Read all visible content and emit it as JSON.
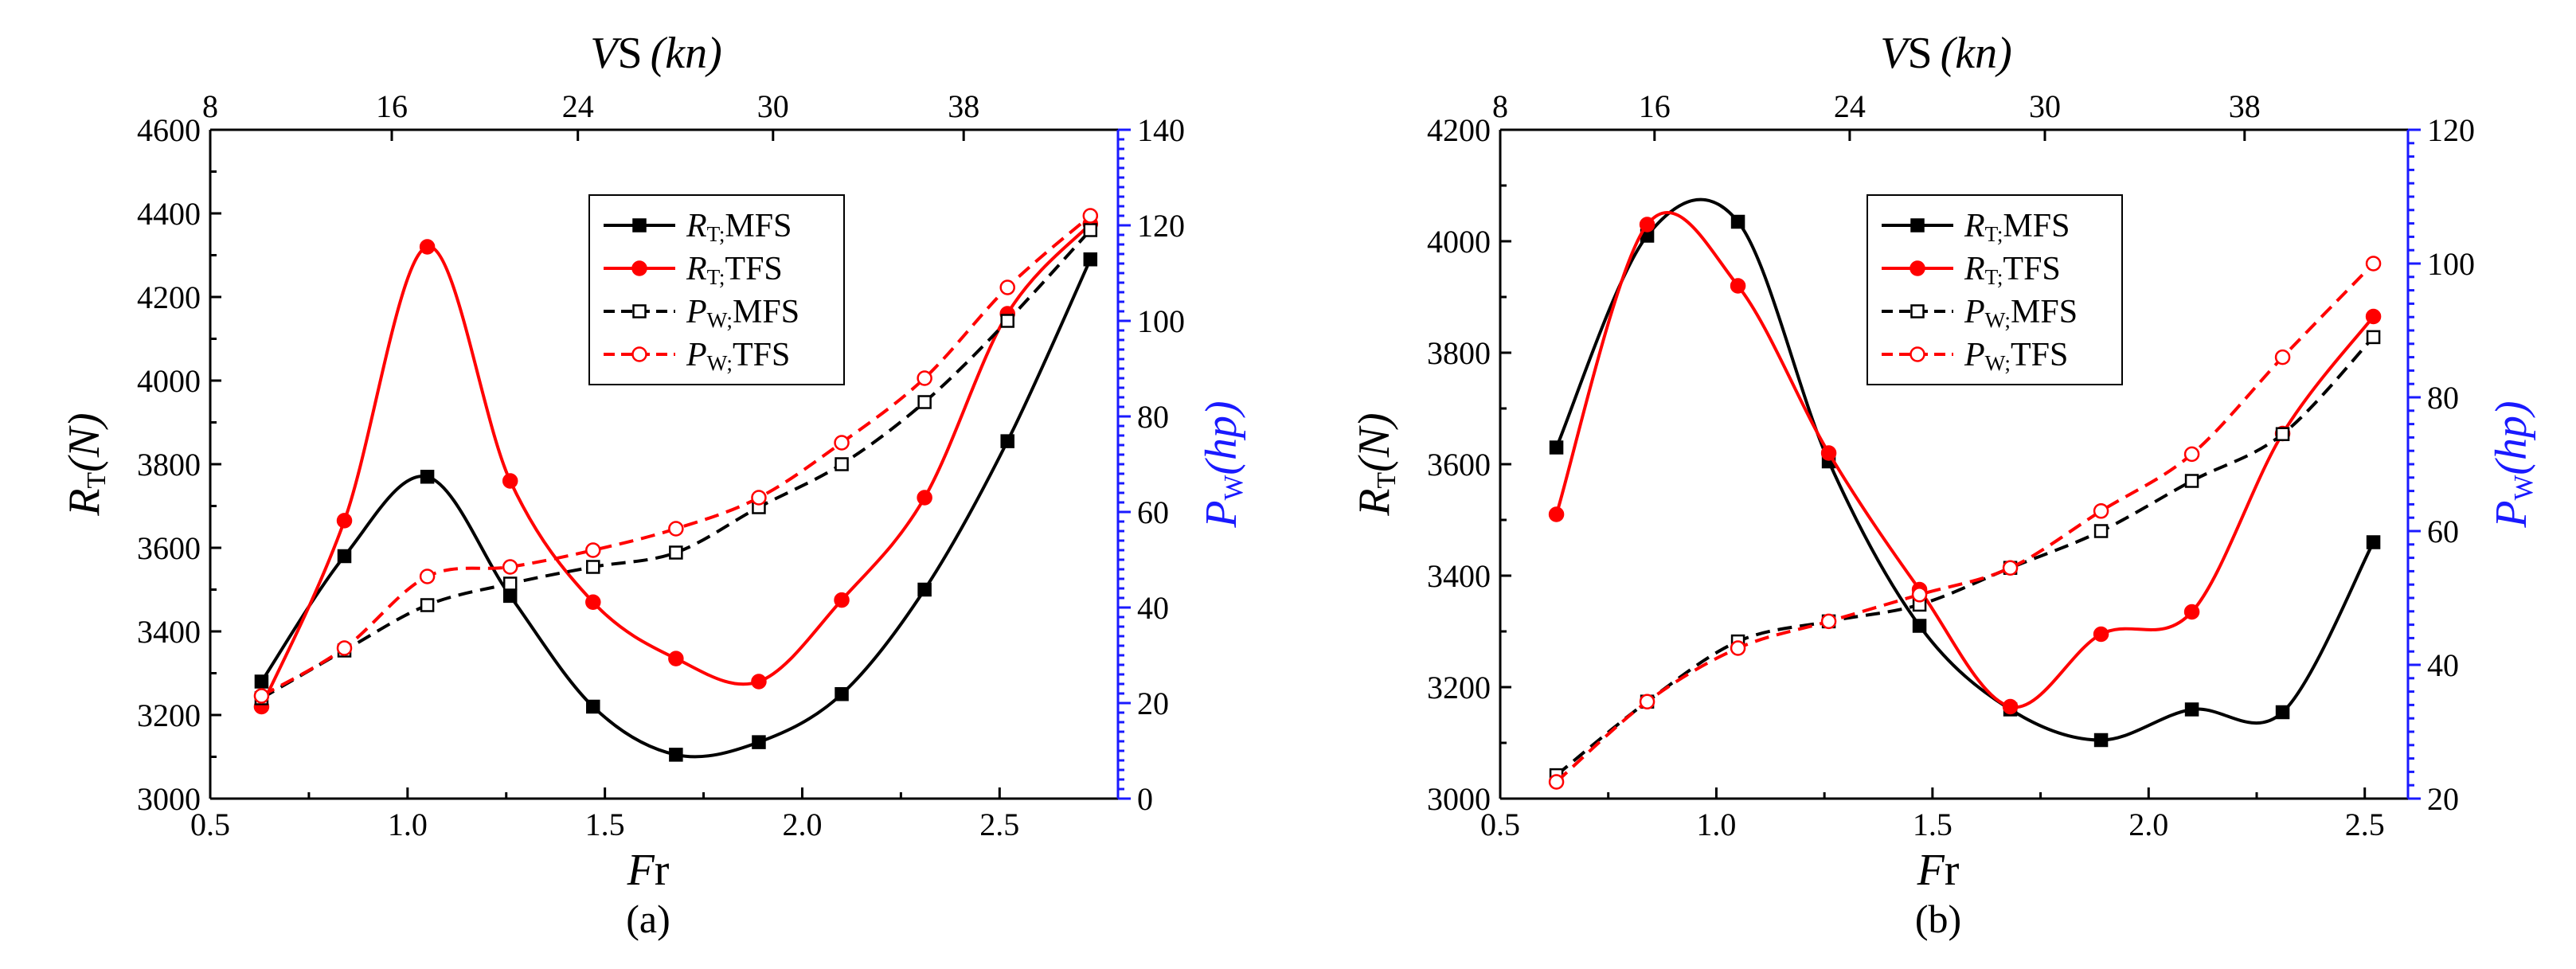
{
  "chart_data": [
    {
      "type": "line",
      "caption": "(a)",
      "x": [
        0.63,
        0.84,
        1.05,
        1.26,
        1.47,
        1.68,
        1.89,
        2.1,
        2.31,
        2.52,
        2.73
      ],
      "xlim": [
        0.5,
        2.8
      ],
      "xticks": [
        "0.5",
        "1.0",
        "1.5",
        "2.0",
        "2.5"
      ],
      "xlabel": {
        "italic": "F",
        "sub": "r"
      },
      "top_axis": {
        "label": {
          "italic": "V",
          "sub": "S",
          "unit": "(kn)"
        },
        "ticks": [
          "8",
          "16",
          "24",
          "30",
          "38"
        ]
      },
      "ylim_left": [
        3000,
        4600
      ],
      "yticks_left": [
        "3000",
        "3200",
        "3400",
        "3600",
        "3800",
        "4000",
        "4200",
        "4400",
        "4600"
      ],
      "ylabel_left": {
        "italic": "R",
        "sub": "T",
        "unit": "(N)"
      },
      "ylim_right": [
        0,
        140
      ],
      "yticks_right": [
        "0",
        "20",
        "40",
        "60",
        "80",
        "100",
        "120",
        "140"
      ],
      "ylabel_right": {
        "italic": "P",
        "sub": "W",
        "unit": "(hp)"
      },
      "series": [
        {
          "name": "R_T;MFS",
          "label_italic": "R",
          "label_sub": "T;",
          "label_rest": "MFS",
          "axis": "left",
          "color": "#000000",
          "marker": "square-filled",
          "dash": "solid",
          "values": [
            3280,
            3580,
            3770,
            3485,
            3220,
            3105,
            3135,
            3250,
            3500,
            3855,
            4290
          ]
        },
        {
          "name": "R_T;TFS",
          "label_italic": "R",
          "label_sub": "T;",
          "label_rest": "TFS",
          "axis": "left",
          "color": "#ff0000",
          "marker": "circle-filled",
          "dash": "solid",
          "values": [
            3220,
            3665,
            4320,
            3760,
            3470,
            3335,
            3280,
            3475,
            3720,
            4160,
            4375
          ]
        },
        {
          "name": "P_W;MFS",
          "label_italic": "P",
          "label_sub": "W;",
          "label_rest": "MFS",
          "axis": "right",
          "color": "#000000",
          "marker": "square-open",
          "dash": "dashed",
          "values": [
            21,
            31,
            40.5,
            45,
            48.5,
            51.5,
            61,
            70,
            83,
            100,
            119
          ]
        },
        {
          "name": "P_W;TFS",
          "label_italic": "P",
          "label_sub": "W;",
          "label_rest": "TFS",
          "axis": "right",
          "color": "#ff0000",
          "marker": "circle-open",
          "dash": "dashed",
          "values": [
            21.5,
            31.5,
            46.5,
            48.5,
            52,
            56.5,
            63,
            74.5,
            88,
            107,
            122
          ]
        }
      ]
    },
    {
      "type": "line",
      "caption": "(b)",
      "x": [
        0.63,
        0.84,
        1.05,
        1.26,
        1.47,
        1.68,
        1.89,
        2.1,
        2.31,
        2.52
      ],
      "xlim": [
        0.5,
        2.6
      ],
      "xticks": [
        "0.5",
        "1.0",
        "1.5",
        "2.0",
        "2.5"
      ],
      "xlabel": {
        "italic": "F",
        "sub": "r"
      },
      "top_axis": {
        "label": {
          "italic": "V",
          "sub": "S",
          "unit": "(kn)"
        },
        "ticks": [
          "8",
          "16",
          "24",
          "30",
          "38"
        ]
      },
      "ylim_left": [
        3000,
        4200
      ],
      "yticks_left": [
        "3000",
        "3200",
        "3400",
        "3600",
        "3800",
        "4000",
        "4200"
      ],
      "ylabel_left": {
        "italic": "R",
        "sub": "T",
        "unit": "(N)"
      },
      "ylim_right": [
        20,
        120
      ],
      "yticks_right": [
        "20",
        "40",
        "60",
        "80",
        "100",
        "120"
      ],
      "ylabel_right": {
        "italic": "P",
        "sub": "W",
        "unit": "(hp)"
      },
      "series": [
        {
          "name": "R_T;MFS",
          "label_italic": "R",
          "label_sub": "T;",
          "label_rest": "MFS",
          "axis": "left",
          "color": "#000000",
          "marker": "square-filled",
          "dash": "solid",
          "values": [
            3630,
            4010,
            4035,
            3605,
            3310,
            3160,
            3105,
            3160,
            3155,
            3460
          ]
        },
        {
          "name": "R_T;TFS",
          "label_italic": "R",
          "label_sub": "T;",
          "label_rest": "TFS",
          "axis": "left",
          "color": "#ff0000",
          "marker": "circle-filled",
          "dash": "solid",
          "values": [
            3510,
            4030,
            3920,
            3620,
            3375,
            3165,
            3295,
            3335,
            3655,
            3865
          ]
        },
        {
          "name": "P_W;MFS",
          "label_italic": "P",
          "label_sub": "W;",
          "label_rest": "MFS",
          "axis": "right",
          "color": "#000000",
          "marker": "square-open",
          "dash": "dashed",
          "values": [
            23.5,
            34.5,
            43.5,
            46.5,
            49,
            54.5,
            60,
            67.5,
            74.5,
            89
          ]
        },
        {
          "name": "P_W;TFS",
          "label_italic": "P",
          "label_sub": "W;",
          "label_rest": "TFS",
          "axis": "right",
          "color": "#ff0000",
          "marker": "circle-open",
          "dash": "dashed",
          "values": [
            22.5,
            34.5,
            42.5,
            46.5,
            50.5,
            54.5,
            63,
            71.5,
            86,
            100
          ]
        }
      ]
    }
  ]
}
